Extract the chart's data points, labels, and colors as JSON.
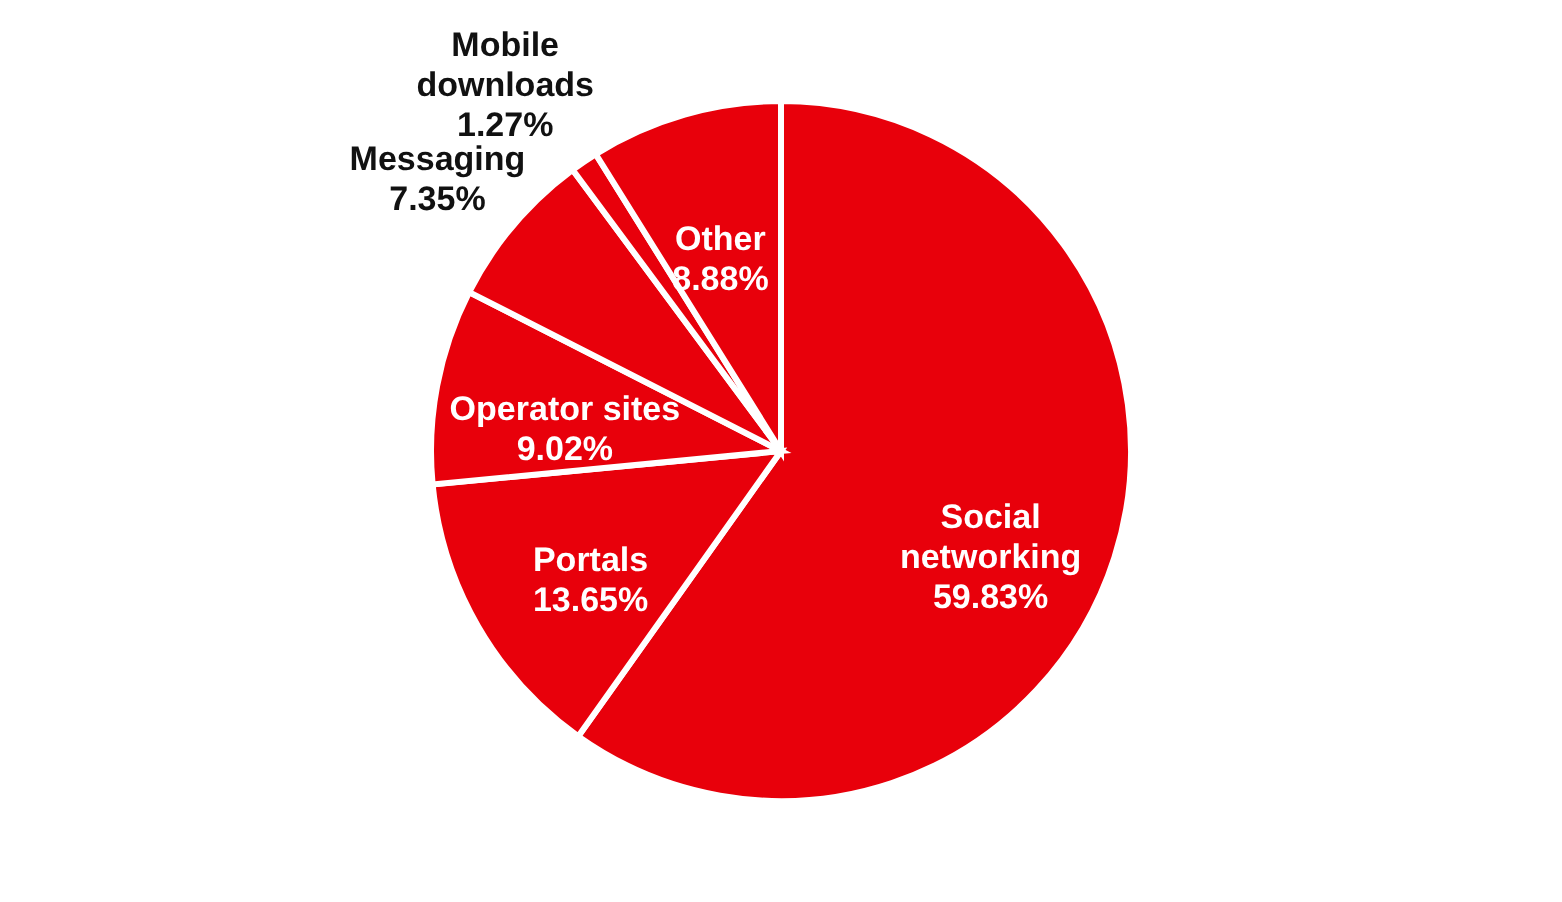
{
  "chart_data": {
    "type": "pie",
    "categories": [
      "Social networking",
      "Portals",
      "Operator sites",
      "Messaging",
      "Mobile downloads",
      "Other"
    ],
    "values": [
      59.83,
      13.65,
      9.02,
      7.35,
      1.27,
      8.88
    ],
    "colors": [
      "#e8000b",
      "#e8000b",
      "#e8000b",
      "#e8000b",
      "#e8000b",
      "#e8000b"
    ],
    "value_labels": [
      "59.83%",
      "13.65%",
      "9.02%",
      "7.35%",
      "1.27%",
      "8.88%"
    ]
  }
}
